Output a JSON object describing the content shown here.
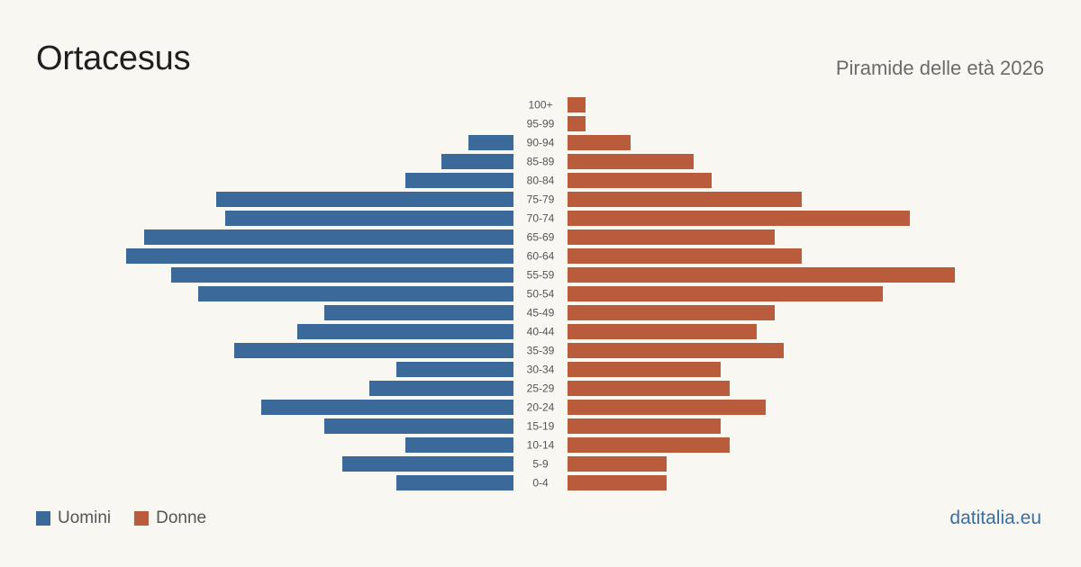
{
  "header": {
    "title": "Ortacesus",
    "subtitle": "Piramide delle età 2026"
  },
  "legend": {
    "men_label": "Uomini",
    "women_label": "Donne"
  },
  "footer": {
    "source": "datitalia.eu"
  },
  "colors": {
    "men": "#3b6a9a",
    "women": "#b95c3c",
    "background": "#f9f7f2",
    "label": "#555555",
    "source": "#3a6ea5"
  },
  "chart_data": {
    "type": "bar",
    "orientation": "horizontal-pyramid",
    "categories": [
      "100+",
      "95-99",
      "90-94",
      "85-89",
      "80-84",
      "75-79",
      "70-74",
      "65-69",
      "60-64",
      "55-59",
      "50-54",
      "45-49",
      "40-44",
      "35-39",
      "30-34",
      "25-29",
      "20-24",
      "15-19",
      "10-14",
      "5-9",
      "0-4"
    ],
    "series": [
      {
        "name": "Uomini",
        "values": [
          0,
          0,
          5,
          8,
          12,
          33,
          32,
          41,
          43,
          38,
          35,
          21,
          24,
          31,
          13,
          16,
          28,
          21,
          12,
          19,
          13
        ]
      },
      {
        "name": "Donne",
        "values": [
          2,
          2,
          7,
          14,
          16,
          26,
          38,
          23,
          26,
          43,
          35,
          23,
          21,
          24,
          17,
          18,
          22,
          17,
          18,
          11,
          11
        ]
      }
    ],
    "legend_position": "bottom-left",
    "grid": false
  }
}
